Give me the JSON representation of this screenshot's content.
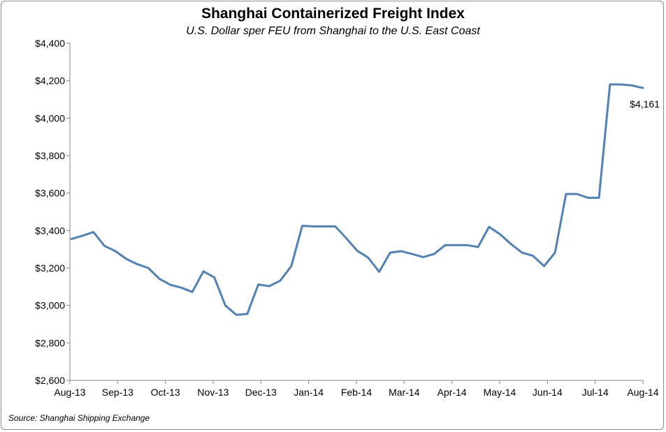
{
  "chart_data": {
    "type": "line",
    "title": "Shanghai Containerized Freight Index",
    "subtitle": "U.S. Dollar sper FEU from Shanghai to the U.S. East Coast",
    "xlabel": "",
    "ylabel": "",
    "ylim": [
      2600,
      4400
    ],
    "yticks": [
      2600,
      2800,
      3000,
      3200,
      3400,
      3600,
      3800,
      4000,
      4200,
      4400
    ],
    "ytick_labels": [
      "$2,600",
      "$2,800",
      "$3,000",
      "$3,200",
      "$3,400",
      "$3,600",
      "$3,800",
      "$4,000",
      "$4,200",
      "$4,400"
    ],
    "x_tick_labels": [
      "Aug-13",
      "Sep-13",
      "Oct-13",
      "Nov-13",
      "Dec-13",
      "Jan-14",
      "Feb-14",
      "Mar-14",
      "Apr-14",
      "May-14",
      "Jun-14",
      "Jul-14",
      "Aug-14"
    ],
    "x_start": "2013-08-01",
    "x_end": "2014-08-01",
    "series": [
      {
        "name": "",
        "color": "#4f81bd",
        "points": [
          [
            "2013-08-02",
            3355
          ],
          [
            "2013-08-09",
            3372
          ],
          [
            "2013-08-16",
            3392
          ],
          [
            "2013-08-23",
            3318
          ],
          [
            "2013-08-30",
            3290
          ],
          [
            "2013-09-06",
            3248
          ],
          [
            "2013-09-13",
            3220
          ],
          [
            "2013-09-20",
            3200
          ],
          [
            "2013-09-27",
            3142
          ],
          [
            "2013-10-04",
            3110
          ],
          [
            "2013-10-11",
            3095
          ],
          [
            "2013-10-18",
            3072
          ],
          [
            "2013-10-25",
            3182
          ],
          [
            "2013-11-01",
            3150
          ],
          [
            "2013-11-08",
            3000
          ],
          [
            "2013-11-15",
            2950
          ],
          [
            "2013-11-22",
            2955
          ],
          [
            "2013-11-29",
            3112
          ],
          [
            "2013-12-06",
            3103
          ],
          [
            "2013-12-13",
            3132
          ],
          [
            "2013-12-20",
            3210
          ],
          [
            "2013-12-27",
            3425
          ],
          [
            "2014-01-03",
            3422
          ],
          [
            "2014-01-10",
            3422
          ],
          [
            "2014-01-17",
            3422
          ],
          [
            "2014-01-24",
            3360
          ],
          [
            "2014-01-31",
            3292
          ],
          [
            "2014-02-07",
            3255
          ],
          [
            "2014-02-14",
            3180
          ],
          [
            "2014-02-21",
            3282
          ],
          [
            "2014-02-28",
            3290
          ],
          [
            "2014-03-07",
            3275
          ],
          [
            "2014-03-14",
            3258
          ],
          [
            "2014-03-21",
            3275
          ],
          [
            "2014-03-28",
            3322
          ],
          [
            "2014-04-04",
            3322
          ],
          [
            "2014-04-11",
            3322
          ],
          [
            "2014-04-18",
            3312
          ],
          [
            "2014-04-25",
            3420
          ],
          [
            "2014-05-02",
            3380
          ],
          [
            "2014-05-09",
            3328
          ],
          [
            "2014-05-16",
            3282
          ],
          [
            "2014-05-23",
            3265
          ],
          [
            "2014-05-30",
            3210
          ],
          [
            "2014-06-06",
            3282
          ],
          [
            "2014-06-13",
            3595
          ],
          [
            "2014-06-20",
            3595
          ],
          [
            "2014-06-27",
            3575
          ],
          [
            "2014-07-04",
            3575
          ],
          [
            "2014-07-11",
            4180
          ],
          [
            "2014-07-18",
            4180
          ],
          [
            "2014-07-25",
            4175
          ],
          [
            "2014-08-01",
            4161
          ]
        ]
      }
    ],
    "annotations": [
      {
        "text": "$4,161",
        "x": "2014-08-01",
        "y": 4161
      }
    ],
    "grid": false,
    "legend": "none"
  },
  "footer": {
    "source": "Source: Shanghai Shipping Exchange"
  }
}
